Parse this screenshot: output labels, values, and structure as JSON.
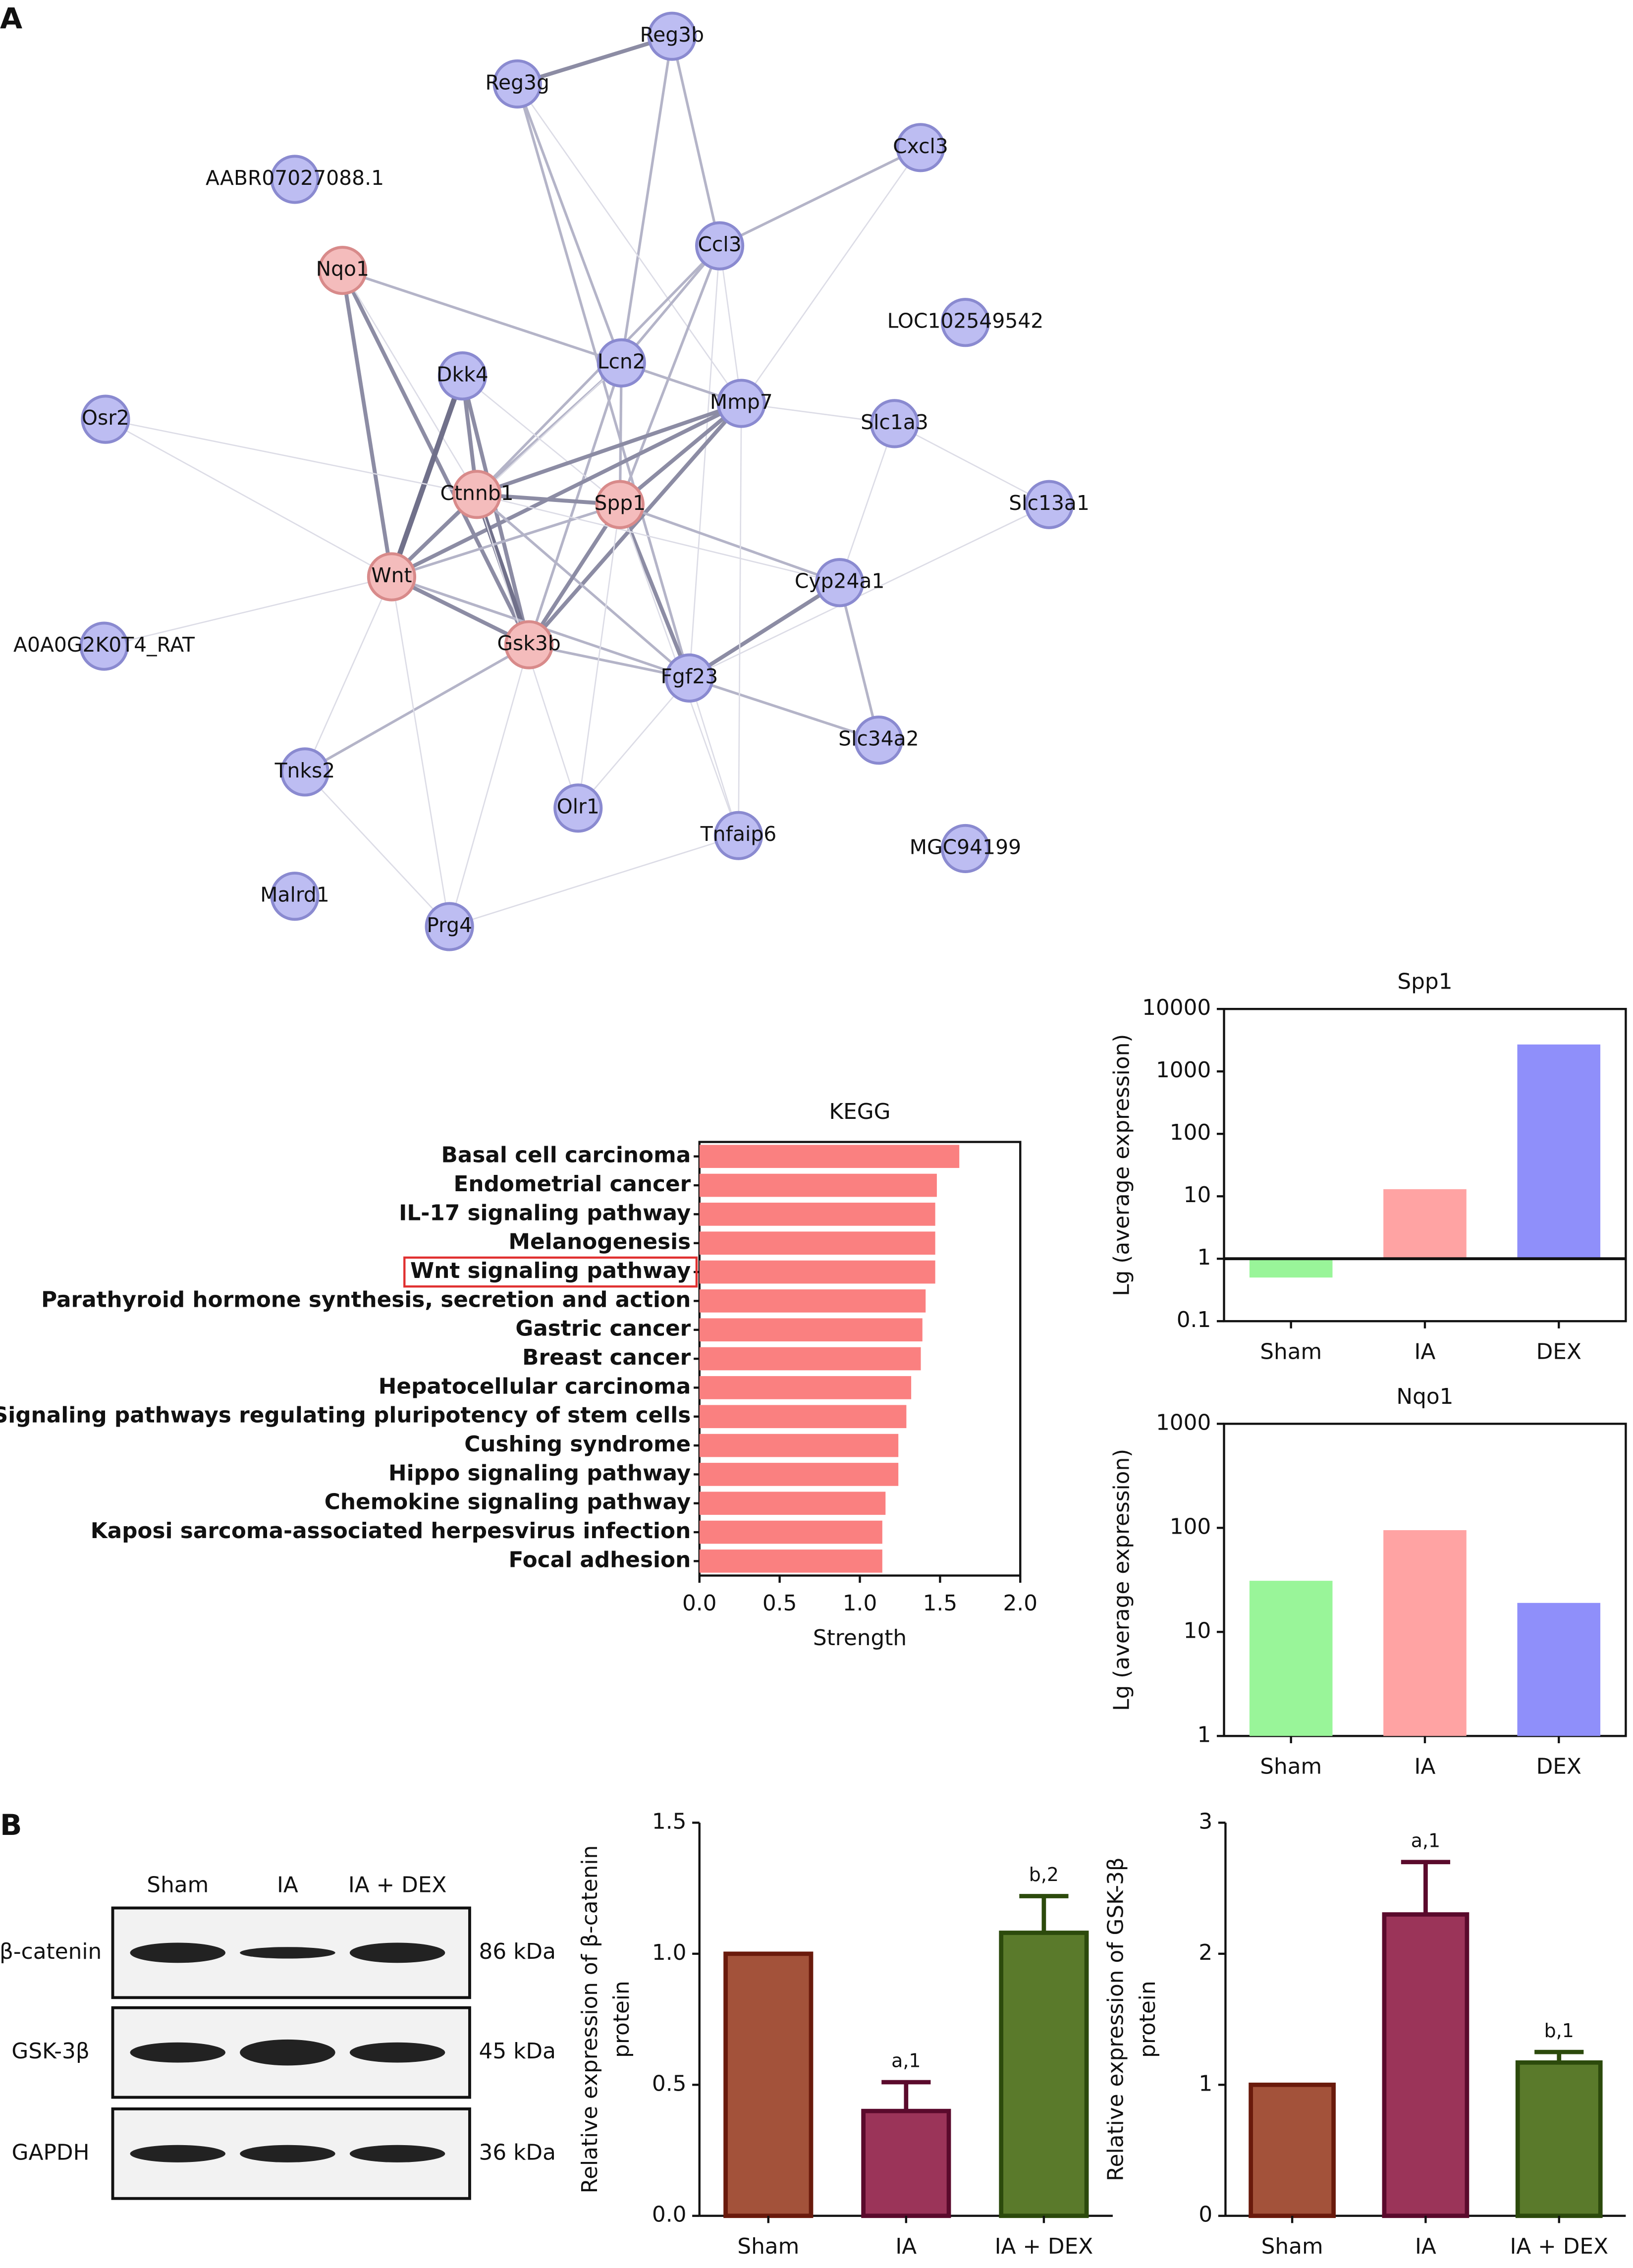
{
  "panels": [
    "A",
    "B"
  ],
  "network": {
    "nodes": [
      {
        "label": "Reg3b",
        "color": "#bdbdf2"
      },
      {
        "label": "Reg3g",
        "color": "#bdbdf2"
      },
      {
        "label": "Cxcl3",
        "color": "#bdbdf2"
      },
      {
        "label": "AABR07027088.1",
        "color": "#bdbdf2"
      },
      {
        "label": "Ccl3",
        "color": "#bdbdf2"
      },
      {
        "label": "Nqo1",
        "color": "#f4bcbc"
      },
      {
        "label": "LOC102549542",
        "color": "#bdbdf2"
      },
      {
        "label": "Lcn2",
        "color": "#bdbdf2"
      },
      {
        "label": "Dkk4",
        "color": "#bdbdf2"
      },
      {
        "label": "Mmp7",
        "color": "#bdbdf2"
      },
      {
        "label": "Osr2",
        "color": "#bdbdf2"
      },
      {
        "label": "Slc1a3",
        "color": "#bdbdf2"
      },
      {
        "label": "Ctnnb1",
        "color": "#f4bcbc"
      },
      {
        "label": "Spp1",
        "color": "#f4bcbc"
      },
      {
        "label": "Slc13a1",
        "color": "#bdbdf2"
      },
      {
        "label": "Wnt",
        "color": "#f4bcbc"
      },
      {
        "label": "Cyp24a1",
        "color": "#bdbdf2"
      },
      {
        "label": "A0A0G2K0T4_RAT",
        "color": "#bdbdf2"
      },
      {
        "label": "Gsk3b",
        "color": "#f4bcbc"
      },
      {
        "label": "Fgf23",
        "color": "#bdbdf2"
      },
      {
        "label": "Slc34a2",
        "color": "#bdbdf2"
      },
      {
        "label": "Tnks2",
        "color": "#bdbdf2"
      },
      {
        "label": "Olr1",
        "color": "#bdbdf2"
      },
      {
        "label": "Tnfaip6",
        "color": "#bdbdf2"
      },
      {
        "label": "MGC94199",
        "color": "#bdbdf2"
      },
      {
        "label": "Malrd1",
        "color": "#bdbdf2"
      },
      {
        "label": "Prg4",
        "color": "#bdbdf2"
      }
    ]
  },
  "western_blot": {
    "lanes": [
      "Sham",
      "IA",
      "IA + DEX"
    ],
    "rows": [
      {
        "protein": "β-catenin",
        "size": "86 kDa"
      },
      {
        "protein": "GSK-3β",
        "size": "45 kDa"
      },
      {
        "protein": "GAPDH",
        "size": "36 kDa"
      }
    ]
  },
  "chart_data": [
    {
      "type": "hbar",
      "title": "KEGG",
      "xlabel": "Strength",
      "categories": [
        "Basal cell carcinoma",
        "Endometrial cancer",
        "IL-17 signaling pathway",
        "Melanogenesis",
        "Wnt signaling pathway",
        "Parathyroid hormone synthesis, secretion and action",
        "Gastric cancer",
        "Breast cancer",
        "Hepatocellular carcinoma",
        "Signaling pathways regulating pluripotency of stem cells",
        "Cushing syndrome",
        "Hippo signaling pathway",
        "Chemokine signaling pathway",
        "Kaposi sarcoma-associated herpesvirus infection",
        "Focal adhesion"
      ],
      "values": [
        1.62,
        1.48,
        1.47,
        1.47,
        1.47,
        1.41,
        1.39,
        1.38,
        1.32,
        1.29,
        1.24,
        1.24,
        1.16,
        1.14,
        1.14
      ],
      "color": "#fa8080",
      "highlight_index": 4,
      "highlight_color": "#e03030",
      "xlim": [
        0,
        2
      ],
      "xticks": [
        {
          "value": 0,
          "label": "0.0"
        },
        0.5,
        {
          "value": 1,
          "label": "1.0"
        },
        1.5,
        {
          "value": 2,
          "label": "2.0"
        }
      ]
    },
    {
      "type": "bar",
      "title": "Spp1",
      "ylabel": [
        "Lg (average expression)"
      ],
      "log": true,
      "box": true,
      "bar_base": 1,
      "categories": [
        "Sham",
        "IA",
        "DEX"
      ],
      "values": [
        0.5,
        13,
        2700
      ],
      "colors": [
        "#99f599",
        "#ffa3a3",
        "#8f8ffa"
      ],
      "ylim": [
        0.1,
        10000
      ],
      "yticks": [
        0.1,
        1,
        10,
        100,
        1000,
        10000
      ]
    },
    {
      "type": "bar",
      "title": "Nqo1",
      "ylabel": [
        "Lg (average expression)"
      ],
      "log": true,
      "box": true,
      "categories": [
        "Sham",
        "IA",
        "DEX"
      ],
      "values": [
        31,
        95,
        19
      ],
      "colors": [
        "#99f599",
        "#ffa3a3",
        "#8f8ffa"
      ],
      "ylim": [
        1,
        1000
      ],
      "yticks": [
        1,
        10,
        100,
        1000
      ]
    },
    {
      "type": "bar",
      "ylabel": [
        "Relative expression of β-catenin",
        "protein"
      ],
      "categories": [
        "Sham",
        "IA",
        "IA + DEX"
      ],
      "values": [
        1.0,
        0.4,
        1.08
      ],
      "errors": [
        null,
        0.11,
        0.14
      ],
      "annotations": [
        null,
        "a,1",
        "b,2"
      ],
      "colors": [
        "#a3523a",
        "#9b3459",
        "#5a7a2b"
      ],
      "edge_colors": [
        "#6a1a0c",
        "#5a0a2c",
        "#2c4a0c"
      ],
      "ylim": [
        0,
        1.5
      ],
      "yticks": [
        {
          "value": 0,
          "label": "0.0"
        },
        0.5,
        {
          "value": 1,
          "label": "1.0"
        },
        1.5
      ]
    },
    {
      "type": "bar",
      "ylabel": [
        "Relative expression of GSK-3β",
        "protein"
      ],
      "categories": [
        "Sham",
        "IA",
        "IA + DEX"
      ],
      "values": [
        1.0,
        2.3,
        1.17
      ],
      "errors": [
        null,
        0.4,
        0.08
      ],
      "annotations": [
        null,
        "a,1",
        "b,1"
      ],
      "colors": [
        "#a3523a",
        "#9b3459",
        "#5a7a2b"
      ],
      "edge_colors": [
        "#6a1a0c",
        "#5a0a2c",
        "#2c4a0c"
      ],
      "ylim": [
        0,
        3
      ],
      "yticks": [
        0,
        1,
        2,
        3
      ]
    }
  ]
}
